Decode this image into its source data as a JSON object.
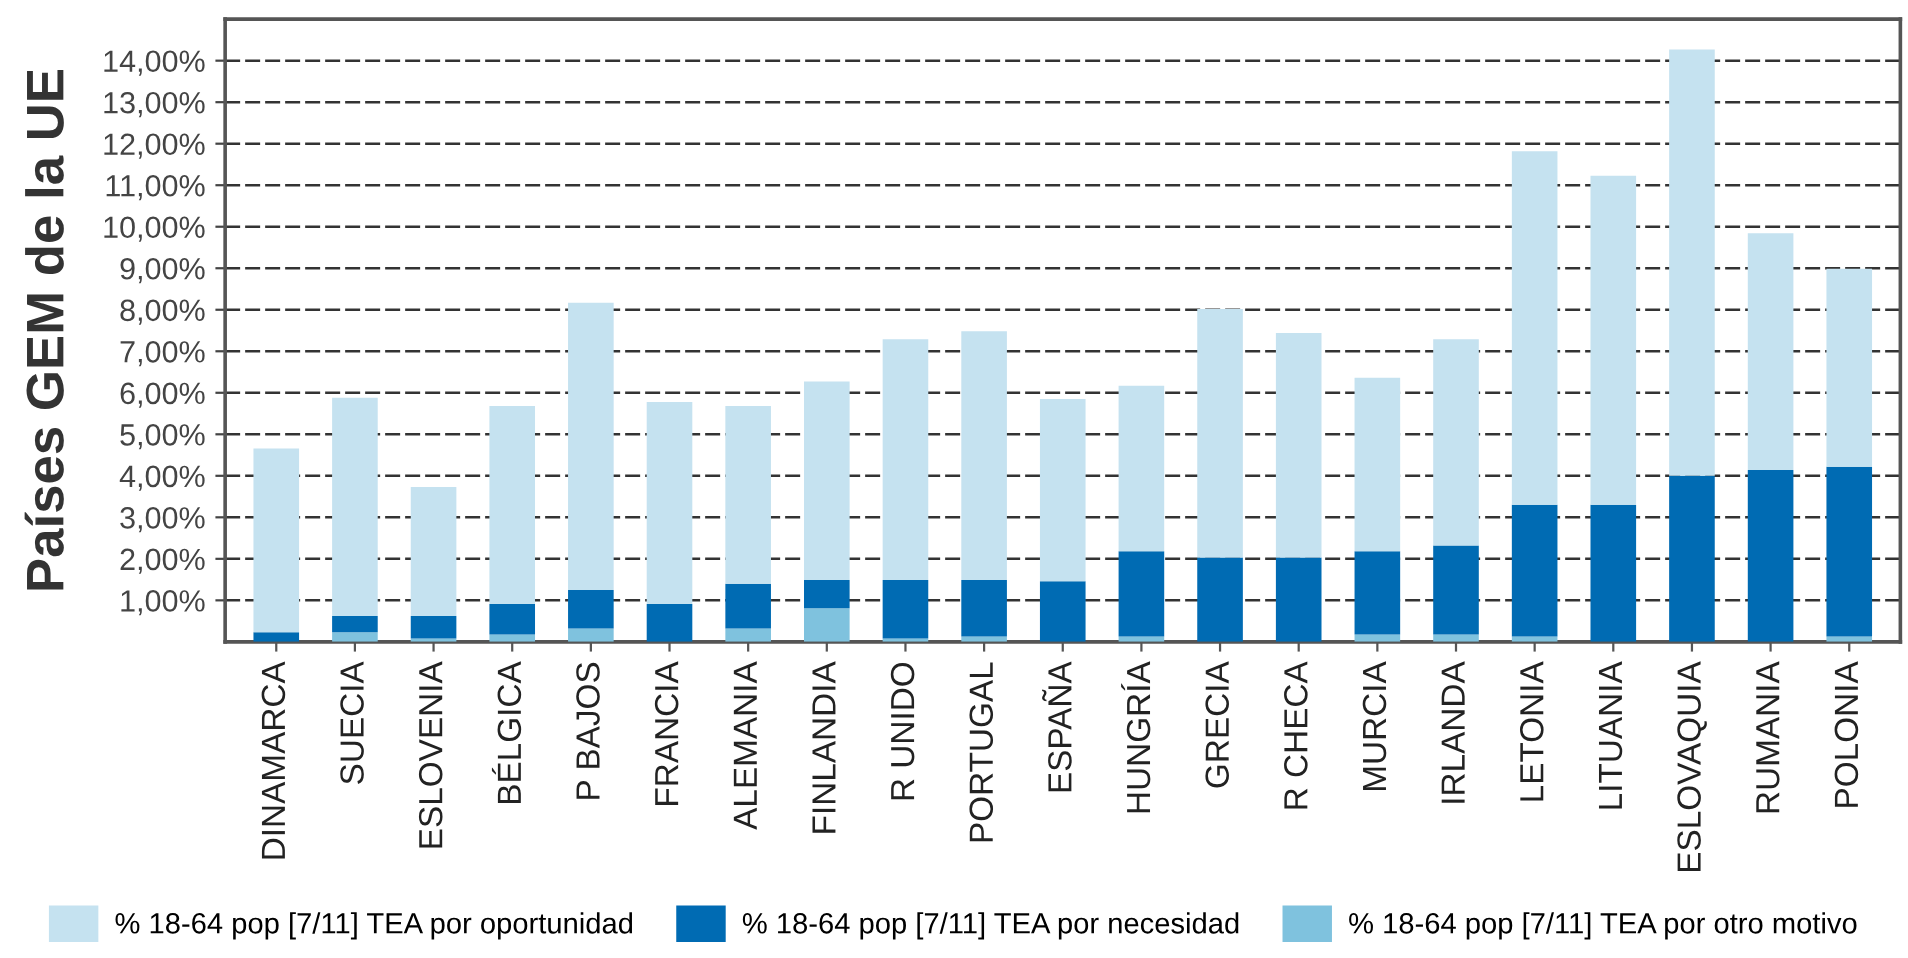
{
  "chart_data": {
    "type": "bar",
    "stacked": true,
    "ylabel": "Países GEM de la UE",
    "categories": [
      "DINAMARCA",
      "SUECIA",
      "ESLOVENIA",
      "BÉLGICA",
      "P BAJOS",
      "FRANCIA",
      "ALEMANIA",
      "FINLANDIA",
      "R UNIDO",
      "PORTUGAL",
      "ESPAÑA",
      "HUNGRÍA",
      "GRECIA",
      "R CHECA",
      "MURCIA",
      "IRLANDA",
      "LETONIA",
      "LITUANIA",
      "ESLOVAQUIA",
      "RUMANIA",
      "POLONIA"
    ],
    "series": [
      {
        "name": "% 18-64 pop [7/11] TEA por otro motivo",
        "color": "#7fc2de",
        "values": [
          0,
          0.23,
          0.08,
          0.18,
          0.32,
          0,
          0.32,
          0.81,
          0.08,
          0.13,
          null,
          0.13,
          0,
          0,
          0.18,
          0.18,
          0.13,
          0,
          null,
          null,
          0.13
        ]
      },
      {
        "name": "% 18-64 pop [7/11] TEA por necesidad",
        "color": "#006bb3",
        "values": [
          0.23,
          0.39,
          0.54,
          0.73,
          0.93,
          0.91,
          1.08,
          0.68,
          1.41,
          1.36,
          1.46,
          2.05,
          2.03,
          2.03,
          2.0,
          2.14,
          3.17,
          3.3,
          4.0,
          4.14,
          4.09
        ]
      },
      {
        "name": "% 18-64 pop [7/11] TEA por oportunidad",
        "color": "#c5e2f0",
        "values": [
          4.43,
          5.26,
          3.11,
          4.77,
          6.92,
          4.87,
          4.28,
          4.78,
          5.8,
          5.99,
          4.39,
          3.99,
          5.99,
          5.41,
          4.18,
          4.97,
          8.52,
          7.93,
          10.27,
          5.7,
          4.77
        ]
      }
    ],
    "ylim": [
      0,
      15
    ],
    "yticks": [
      {
        "value": 1,
        "label": "1,00%"
      },
      {
        "value": 2,
        "label": "2,00%"
      },
      {
        "value": 3,
        "label": "3,00%"
      },
      {
        "value": 4,
        "label": "4,00%"
      },
      {
        "value": 5,
        "label": "5,00%"
      },
      {
        "value": 6,
        "label": "6,00%"
      },
      {
        "value": 7,
        "label": "7,00%"
      },
      {
        "value": 8,
        "label": "8,00%"
      },
      {
        "value": 9,
        "label": "9,00%"
      },
      {
        "value": 10,
        "label": "10,00%"
      },
      {
        "value": 11,
        "label": "11,00%"
      },
      {
        "value": 12,
        "label": "12,00%"
      },
      {
        "value": 13,
        "label": "13,00%"
      },
      {
        "value": 14,
        "label": "14,00%"
      }
    ],
    "grid": "y",
    "legend": "bottom"
  }
}
